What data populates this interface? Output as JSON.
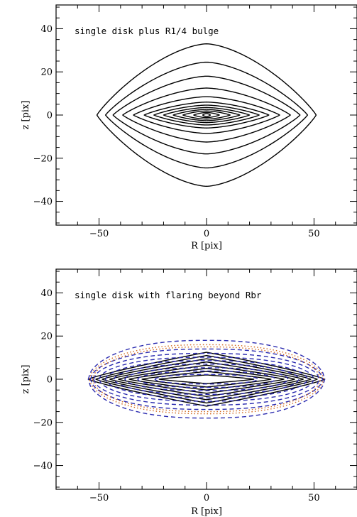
{
  "chart_data": [
    {
      "type": "contour",
      "title": "single disk plus R1/4 bulge",
      "xlabel": "R [pix]",
      "ylabel": "z [pix]",
      "xlim": [
        -70,
        70
      ],
      "ylim": [
        -51,
        51
      ],
      "xticks": [
        -50,
        0,
        50
      ],
      "yticks": [
        -40,
        -20,
        0,
        20,
        40
      ],
      "series": [
        {
          "style": "solid",
          "color": "#000000",
          "contours": [
            {
              "shape": "bulge",
              "a": 1.8,
              "b": 0.7
            },
            {
              "shape": "bulge",
              "a": 6,
              "b": 1.2
            },
            {
              "shape": "bulge",
              "a": 11,
              "b": 1.9
            },
            {
              "shape": "bulge",
              "a": 15.5,
              "b": 2.6
            },
            {
              "shape": "bulge",
              "a": 20,
              "b": 3.5
            },
            {
              "shape": "bulge",
              "a": 24.5,
              "b": 4.6
            },
            {
              "shape": "bulge",
              "a": 29,
              "b": 6
            },
            {
              "shape": "bulge",
              "a": 34,
              "b": 8.5
            },
            {
              "shape": "bulge",
              "a": 39,
              "b": 12.5
            },
            {
              "shape": "bulge",
              "a": 43.5,
              "b": 18
            },
            {
              "shape": "bulge",
              "a": 47,
              "b": 24.5
            },
            {
              "shape": "bulge",
              "a": 51,
              "b": 33
            }
          ]
        }
      ]
    },
    {
      "type": "contour",
      "title": "single disk with flaring beyond Rbr",
      "xlabel": "R [pix]",
      "ylabel": "z [pix]",
      "xlim": [
        -70,
        70
      ],
      "ylim": [
        -51,
        51
      ],
      "xticks": [
        -50,
        0,
        50
      ],
      "yticks": [
        -40,
        -20,
        0,
        20,
        40
      ],
      "series": [
        {
          "style": "solid",
          "color": "#000000",
          "contours": [
            {
              "shape": "diamond",
              "a": 22,
              "b": 2
            },
            {
              "shape": "diamond",
              "a": 30,
              "b": 3.6
            },
            {
              "shape": "diamond",
              "a": 36,
              "b": 5
            },
            {
              "shape": "diamond",
              "a": 41,
              "b": 6.5
            },
            {
              "shape": "diamond",
              "a": 45,
              "b": 8
            },
            {
              "shape": "diamond",
              "a": 48.5,
              "b": 9.5
            },
            {
              "shape": "diamond",
              "a": 51.5,
              "b": 11
            },
            {
              "shape": "diamond",
              "a": 55,
              "b": 12.5
            }
          ]
        },
        {
          "style": "dashed",
          "color": "#2b2bb0",
          "contours": [
            {
              "shape": "flare",
              "a": 24,
              "b": 2.2
            },
            {
              "shape": "flare",
              "a": 32,
              "b": 3.8
            },
            {
              "shape": "flare",
              "a": 38,
              "b": 5.3
            },
            {
              "shape": "flare",
              "a": 43,
              "b": 7
            },
            {
              "shape": "flare",
              "a": 47,
              "b": 8.6
            },
            {
              "shape": "flare",
              "a": 50,
              "b": 10.2
            },
            {
              "shape": "flare",
              "a": 52.5,
              "b": 12
            },
            {
              "shape": "flare",
              "a": 54,
              "b": 14
            },
            {
              "shape": "flare",
              "a": 55,
              "b": 18
            }
          ]
        },
        {
          "style": "dotted",
          "color": "#d2691e",
          "contours": [
            {
              "shape": "flare",
              "a": 53,
              "b": 15
            },
            {
              "shape": "flare",
              "a": 54.5,
              "b": 16
            }
          ]
        }
      ]
    }
  ]
}
